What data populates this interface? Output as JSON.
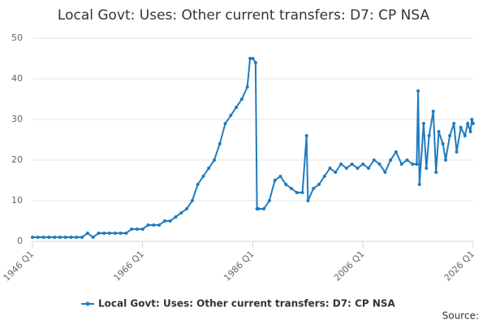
{
  "chart_data": {
    "type": "line",
    "title": "Local Govt: Uses: Other current transfers: D7: CP NSA",
    "source": "Source:",
    "x": [
      1946,
      1947,
      1948,
      1949,
      1950,
      1951,
      1952,
      1953,
      1954,
      1955,
      1956,
      1957,
      1958,
      1959,
      1960,
      1961,
      1962,
      1963,
      1964,
      1965,
      1966,
      1967,
      1968,
      1969,
      1970,
      1971,
      1972,
      1973,
      1974,
      1975,
      1976,
      1977,
      1978,
      1979,
      1980,
      1981,
      1982,
      1983,
      1984,
      1985,
      1985.5,
      1986,
      1986.5,
      1986.75,
      1987,
      1988,
      1989,
      1990,
      1991,
      1992,
      1993,
      1994,
      1995,
      1995.75,
      1996,
      1997,
      1998,
      1999,
      2000,
      2001,
      2002,
      2003,
      2004,
      2005,
      2006,
      2007,
      2008,
      2009,
      2010,
      2011,
      2012,
      2013,
      2014,
      2015,
      2015.75,
      2016,
      2016.25,
      2017,
      2017.5,
      2018,
      2018.75,
      2019.25,
      2019.75,
      2020.5,
      2021,
      2021.75,
      2022.5,
      2023,
      2023.75,
      2024.5,
      2025,
      2025.5,
      2025.75,
      2026
    ],
    "series": [
      {
        "name": "Local Govt: Uses: Other current transfers: D7: CP NSA",
        "color": "#1f7bbf",
        "values": [
          1,
          1,
          1,
          1,
          1,
          1,
          1,
          1,
          1,
          1,
          2,
          1,
          2,
          2,
          2,
          2,
          2,
          2,
          3,
          3,
          3,
          4,
          4,
          4,
          5,
          5,
          6,
          7,
          8,
          10,
          14,
          16,
          18,
          20,
          24,
          29,
          31,
          33,
          35,
          38,
          45,
          45,
          44,
          8,
          8,
          8,
          10,
          15,
          16,
          14,
          13,
          12,
          12,
          26,
          10,
          13,
          14,
          16,
          18,
          17,
          19,
          18,
          19,
          18,
          19,
          18,
          20,
          19,
          17,
          20,
          22,
          19,
          20,
          19,
          19,
          37,
          14,
          29,
          18,
          26,
          32,
          17,
          27,
          24,
          20,
          26,
          29,
          22,
          28,
          26,
          29,
          27,
          30,
          29
        ]
      }
    ],
    "xlim": [
      1946,
      2026
    ],
    "xticks": [
      {
        "value": 1946,
        "label": "1946 Q1"
      },
      {
        "value": 1966,
        "label": "1966 Q1"
      },
      {
        "value": 1986,
        "label": "1986 Q1"
      },
      {
        "value": 2006,
        "label": "2006 Q1"
      },
      {
        "value": 2026,
        "label": "2026 Q1"
      }
    ],
    "ylim": [
      0,
      50
    ],
    "yticks": [
      0,
      10,
      20,
      30,
      40,
      50
    ],
    "grid": true
  }
}
